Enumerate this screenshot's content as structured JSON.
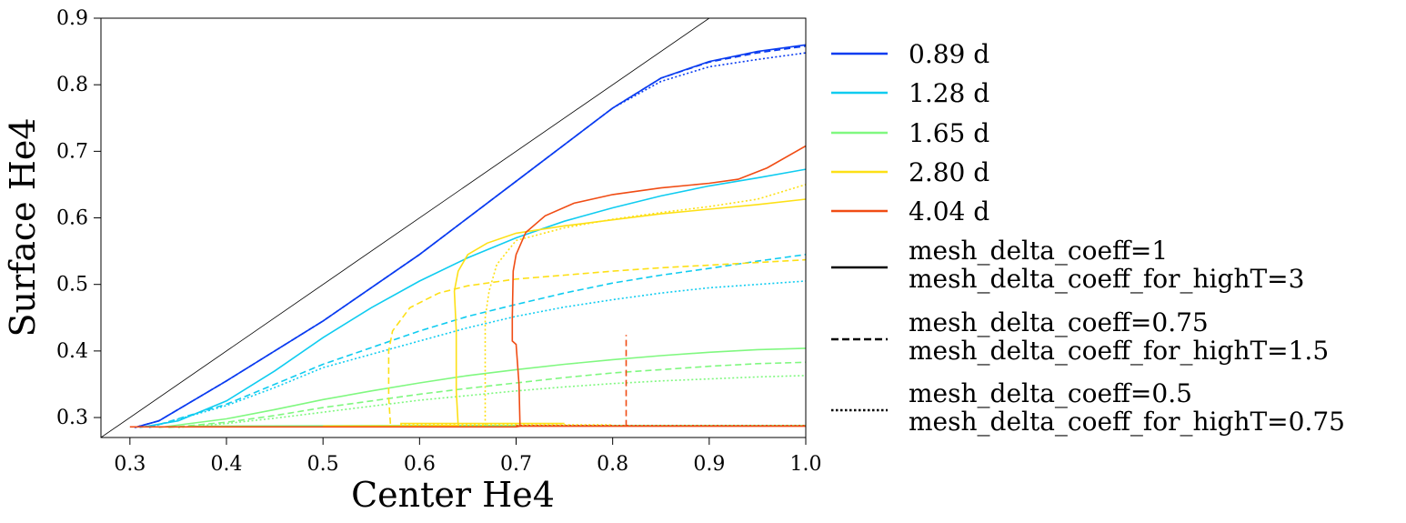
{
  "chart_data": {
    "type": "line",
    "title": "",
    "xlabel": "Center He4",
    "ylabel": "Surface He4",
    "xlim": [
      0.27,
      1.0
    ],
    "ylim": [
      0.27,
      0.9
    ],
    "x_ticks": [
      0.3,
      0.4,
      0.5,
      0.6,
      0.7,
      0.8,
      0.9,
      1.0
    ],
    "x_tick_labels": [
      "0.3",
      "0.4",
      "0.5",
      "0.6",
      "0.7",
      "0.8",
      "0.9",
      "1.0"
    ],
    "y_ticks": [
      0.3,
      0.4,
      0.5,
      0.6,
      0.7,
      0.8,
      0.9
    ],
    "y_tick_labels": [
      "0.3",
      "0.4",
      "0.5",
      "0.6",
      "0.7",
      "0.8",
      "0.9"
    ],
    "grid": false,
    "legend_position": "outside-right",
    "reference_line": {
      "points": [
        [
          0.27,
          0.27
        ],
        [
          0.9,
          0.9
        ]
      ],
      "color": "#000000"
    },
    "period_legend": [
      {
        "label": "0.89 d",
        "color": "#0a3cf0"
      },
      {
        "label": "1.28 d",
        "color": "#10ccf0"
      },
      {
        "label": "1.65 d",
        "color": "#80f880"
      },
      {
        "label": "2.80 d",
        "color": "#fde016"
      },
      {
        "label": "4.04 d",
        "color": "#f04c14"
      }
    ],
    "style_legend": [
      {
        "lines": [
          "mesh_delta_coeff=1",
          "mesh_delta_coeff_for_highT=3"
        ],
        "dash": "solid"
      },
      {
        "lines": [
          "mesh_delta_coeff=0.75",
          "mesh_delta_coeff_for_highT=1.5"
        ],
        "dash": "dashed"
      },
      {
        "lines": [
          "mesh_delta_coeff=0.5",
          "mesh_delta_coeff_for_highT=0.75"
        ],
        "dash": "dotted"
      }
    ],
    "series": [
      {
        "period": "0.89 d",
        "color": "#0a3cf0",
        "dash": "solid",
        "points": [
          [
            0.305,
            0.285
          ],
          [
            0.33,
            0.295
          ],
          [
            0.4,
            0.355
          ],
          [
            0.5,
            0.445
          ],
          [
            0.6,
            0.545
          ],
          [
            0.7,
            0.655
          ],
          [
            0.8,
            0.765
          ],
          [
            0.85,
            0.81
          ],
          [
            0.9,
            0.835
          ],
          [
            0.95,
            0.85
          ],
          [
            1.0,
            0.86
          ]
        ]
      },
      {
        "period": "0.89 d",
        "color": "#0a3cf0",
        "dash": "dashed",
        "points": [
          [
            0.305,
            0.285
          ],
          [
            0.33,
            0.295
          ],
          [
            0.4,
            0.355
          ],
          [
            0.5,
            0.445
          ],
          [
            0.6,
            0.545
          ],
          [
            0.7,
            0.655
          ],
          [
            0.8,
            0.765
          ],
          [
            0.85,
            0.81
          ],
          [
            0.9,
            0.834
          ],
          [
            0.95,
            0.848
          ],
          [
            1.0,
            0.858
          ]
        ]
      },
      {
        "period": "0.89 d",
        "color": "#0a3cf0",
        "dash": "dotted",
        "points": [
          [
            0.305,
            0.285
          ],
          [
            0.33,
            0.295
          ],
          [
            0.4,
            0.355
          ],
          [
            0.5,
            0.445
          ],
          [
            0.6,
            0.545
          ],
          [
            0.7,
            0.655
          ],
          [
            0.8,
            0.765
          ],
          [
            0.85,
            0.805
          ],
          [
            0.9,
            0.827
          ],
          [
            0.95,
            0.838
          ],
          [
            1.0,
            0.848
          ]
        ]
      },
      {
        "period": "1.28 d",
        "color": "#10ccf0",
        "dash": "solid",
        "points": [
          [
            0.31,
            0.285
          ],
          [
            0.35,
            0.295
          ],
          [
            0.4,
            0.325
          ],
          [
            0.45,
            0.37
          ],
          [
            0.5,
            0.42
          ],
          [
            0.55,
            0.465
          ],
          [
            0.6,
            0.505
          ],
          [
            0.65,
            0.54
          ],
          [
            0.7,
            0.57
          ],
          [
            0.75,
            0.595
          ],
          [
            0.8,
            0.615
          ],
          [
            0.85,
            0.633
          ],
          [
            0.9,
            0.648
          ],
          [
            0.95,
            0.66
          ],
          [
            1.0,
            0.673
          ]
        ]
      },
      {
        "period": "1.28 d",
        "color": "#10ccf0",
        "dash": "dashed",
        "points": [
          [
            0.32,
            0.285
          ],
          [
            0.4,
            0.32
          ],
          [
            0.45,
            0.35
          ],
          [
            0.5,
            0.38
          ],
          [
            0.55,
            0.405
          ],
          [
            0.6,
            0.43
          ],
          [
            0.65,
            0.452
          ],
          [
            0.7,
            0.47
          ],
          [
            0.75,
            0.487
          ],
          [
            0.8,
            0.502
          ],
          [
            0.85,
            0.514
          ],
          [
            0.9,
            0.524
          ],
          [
            0.95,
            0.535
          ],
          [
            1.0,
            0.545
          ]
        ]
      },
      {
        "period": "1.28 d",
        "color": "#10ccf0",
        "dash": "dotted",
        "points": [
          [
            0.32,
            0.285
          ],
          [
            0.4,
            0.318
          ],
          [
            0.45,
            0.345
          ],
          [
            0.5,
            0.375
          ],
          [
            0.55,
            0.395
          ],
          [
            0.6,
            0.415
          ],
          [
            0.65,
            0.435
          ],
          [
            0.7,
            0.452
          ],
          [
            0.75,
            0.466
          ],
          [
            0.8,
            0.477
          ],
          [
            0.85,
            0.487
          ],
          [
            0.9,
            0.495
          ],
          [
            0.95,
            0.5
          ],
          [
            1.0,
            0.505
          ]
        ]
      },
      {
        "period": "1.65 d",
        "color": "#80f880",
        "dash": "solid",
        "points": [
          [
            0.33,
            0.285
          ],
          [
            0.4,
            0.298
          ],
          [
            0.45,
            0.312
          ],
          [
            0.5,
            0.327
          ],
          [
            0.55,
            0.34
          ],
          [
            0.6,
            0.352
          ],
          [
            0.65,
            0.363
          ],
          [
            0.7,
            0.372
          ],
          [
            0.75,
            0.38
          ],
          [
            0.8,
            0.387
          ],
          [
            0.85,
            0.393
          ],
          [
            0.9,
            0.398
          ],
          [
            0.95,
            0.402
          ],
          [
            1.0,
            0.404
          ]
        ]
      },
      {
        "period": "1.65 d",
        "color": "#80f880",
        "dash": "dashed",
        "points": [
          [
            0.34,
            0.285
          ],
          [
            0.4,
            0.293
          ],
          [
            0.45,
            0.303
          ],
          [
            0.5,
            0.315
          ],
          [
            0.55,
            0.325
          ],
          [
            0.6,
            0.335
          ],
          [
            0.65,
            0.344
          ],
          [
            0.7,
            0.352
          ],
          [
            0.75,
            0.36
          ],
          [
            0.8,
            0.367
          ],
          [
            0.85,
            0.372
          ],
          [
            0.9,
            0.377
          ],
          [
            0.95,
            0.381
          ],
          [
            1.0,
            0.383
          ]
        ]
      },
      {
        "period": "1.65 d",
        "color": "#80f880",
        "dash": "dotted",
        "points": [
          [
            0.35,
            0.285
          ],
          [
            0.4,
            0.291
          ],
          [
            0.45,
            0.299
          ],
          [
            0.5,
            0.308
          ],
          [
            0.55,
            0.317
          ],
          [
            0.6,
            0.326
          ],
          [
            0.65,
            0.333
          ],
          [
            0.7,
            0.34
          ],
          [
            0.75,
            0.346
          ],
          [
            0.8,
            0.351
          ],
          [
            0.85,
            0.355
          ],
          [
            0.9,
            0.358
          ],
          [
            0.95,
            0.361
          ],
          [
            1.0,
            0.363
          ]
        ]
      },
      {
        "period": "1.65 d",
        "color": "#80f880",
        "dash": "solid",
        "points": [
          [
            0.36,
            0.287
          ],
          [
            0.6,
            0.288
          ],
          [
            0.85,
            0.288
          ],
          [
            1.0,
            0.288
          ]
        ]
      },
      {
        "period": "2.80 d",
        "color": "#fde016",
        "dash": "solid",
        "points": [
          [
            0.5,
            0.287
          ],
          [
            0.6,
            0.287
          ],
          [
            0.64,
            0.288
          ],
          [
            0.638,
            0.34
          ],
          [
            0.638,
            0.43
          ],
          [
            0.636,
            0.49
          ],
          [
            0.64,
            0.52
          ],
          [
            0.65,
            0.545
          ],
          [
            0.67,
            0.562
          ],
          [
            0.7,
            0.577
          ],
          [
            0.75,
            0.588
          ],
          [
            0.8,
            0.597
          ],
          [
            0.85,
            0.606
          ],
          [
            0.9,
            0.613
          ],
          [
            0.95,
            0.62
          ],
          [
            1.0,
            0.628
          ]
        ]
      },
      {
        "period": "2.80 d",
        "color": "#fde016",
        "dash": "dashed",
        "points": [
          [
            0.5,
            0.287
          ],
          [
            0.57,
            0.287
          ],
          [
            0.568,
            0.33
          ],
          [
            0.568,
            0.4
          ],
          [
            0.572,
            0.43
          ],
          [
            0.59,
            0.465
          ],
          [
            0.62,
            0.487
          ],
          [
            0.65,
            0.498
          ],
          [
            0.7,
            0.508
          ],
          [
            0.75,
            0.514
          ],
          [
            0.8,
            0.52
          ],
          [
            0.85,
            0.525
          ],
          [
            0.9,
            0.529
          ],
          [
            0.95,
            0.533
          ],
          [
            1.0,
            0.537
          ]
        ]
      },
      {
        "period": "2.80 d",
        "color": "#fde016",
        "dash": "dotted",
        "points": [
          [
            0.55,
            0.287
          ],
          [
            0.668,
            0.288
          ],
          [
            0.668,
            0.34
          ],
          [
            0.668,
            0.45
          ],
          [
            0.672,
            0.49
          ],
          [
            0.68,
            0.53
          ],
          [
            0.7,
            0.566
          ],
          [
            0.75,
            0.585
          ],
          [
            0.8,
            0.598
          ],
          [
            0.85,
            0.608
          ],
          [
            0.9,
            0.617
          ],
          [
            0.95,
            0.628
          ],
          [
            1.0,
            0.65
          ]
        ]
      },
      {
        "period": "2.80 d",
        "color": "#fde016",
        "dash": "solid",
        "points": [
          [
            0.58,
            0.291
          ],
          [
            0.75,
            0.291
          ]
        ]
      },
      {
        "period": "2.80 d",
        "color": "#fde016",
        "dash": "dotted",
        "points": [
          [
            0.58,
            0.289
          ],
          [
            0.8,
            0.289
          ]
        ]
      },
      {
        "period": "4.04 d",
        "color": "#f04c14",
        "dash": "solid",
        "points": [
          [
            0.3,
            0.286
          ],
          [
            0.5,
            0.286
          ],
          [
            0.7,
            0.286
          ],
          [
            0.704,
            0.287
          ],
          [
            0.703,
            0.35
          ],
          [
            0.7,
            0.41
          ],
          [
            0.696,
            0.415
          ],
          [
            0.696,
            0.45
          ],
          [
            0.697,
            0.52
          ],
          [
            0.7,
            0.545
          ],
          [
            0.71,
            0.578
          ],
          [
            0.73,
            0.603
          ],
          [
            0.76,
            0.622
          ],
          [
            0.8,
            0.635
          ],
          [
            0.85,
            0.645
          ],
          [
            0.9,
            0.652
          ],
          [
            0.93,
            0.658
          ],
          [
            0.96,
            0.675
          ],
          [
            1.0,
            0.708
          ]
        ]
      },
      {
        "period": "4.04 d",
        "color": "#f04c14",
        "dash": "solid",
        "points": [
          [
            0.7,
            0.287
          ],
          [
            0.85,
            0.287
          ],
          [
            1.0,
            0.287
          ]
        ]
      },
      {
        "period": "4.04 d",
        "color": "#f04c14",
        "dash": "dashed",
        "points": [
          [
            0.814,
            0.287
          ],
          [
            0.814,
            0.424
          ]
        ]
      },
      {
        "period": "4.04 d",
        "color": "#f04c14",
        "dash": "dotted",
        "points": [
          [
            0.7,
            0.288
          ],
          [
            0.85,
            0.288
          ],
          [
            1.0,
            0.288
          ]
        ]
      }
    ]
  }
}
